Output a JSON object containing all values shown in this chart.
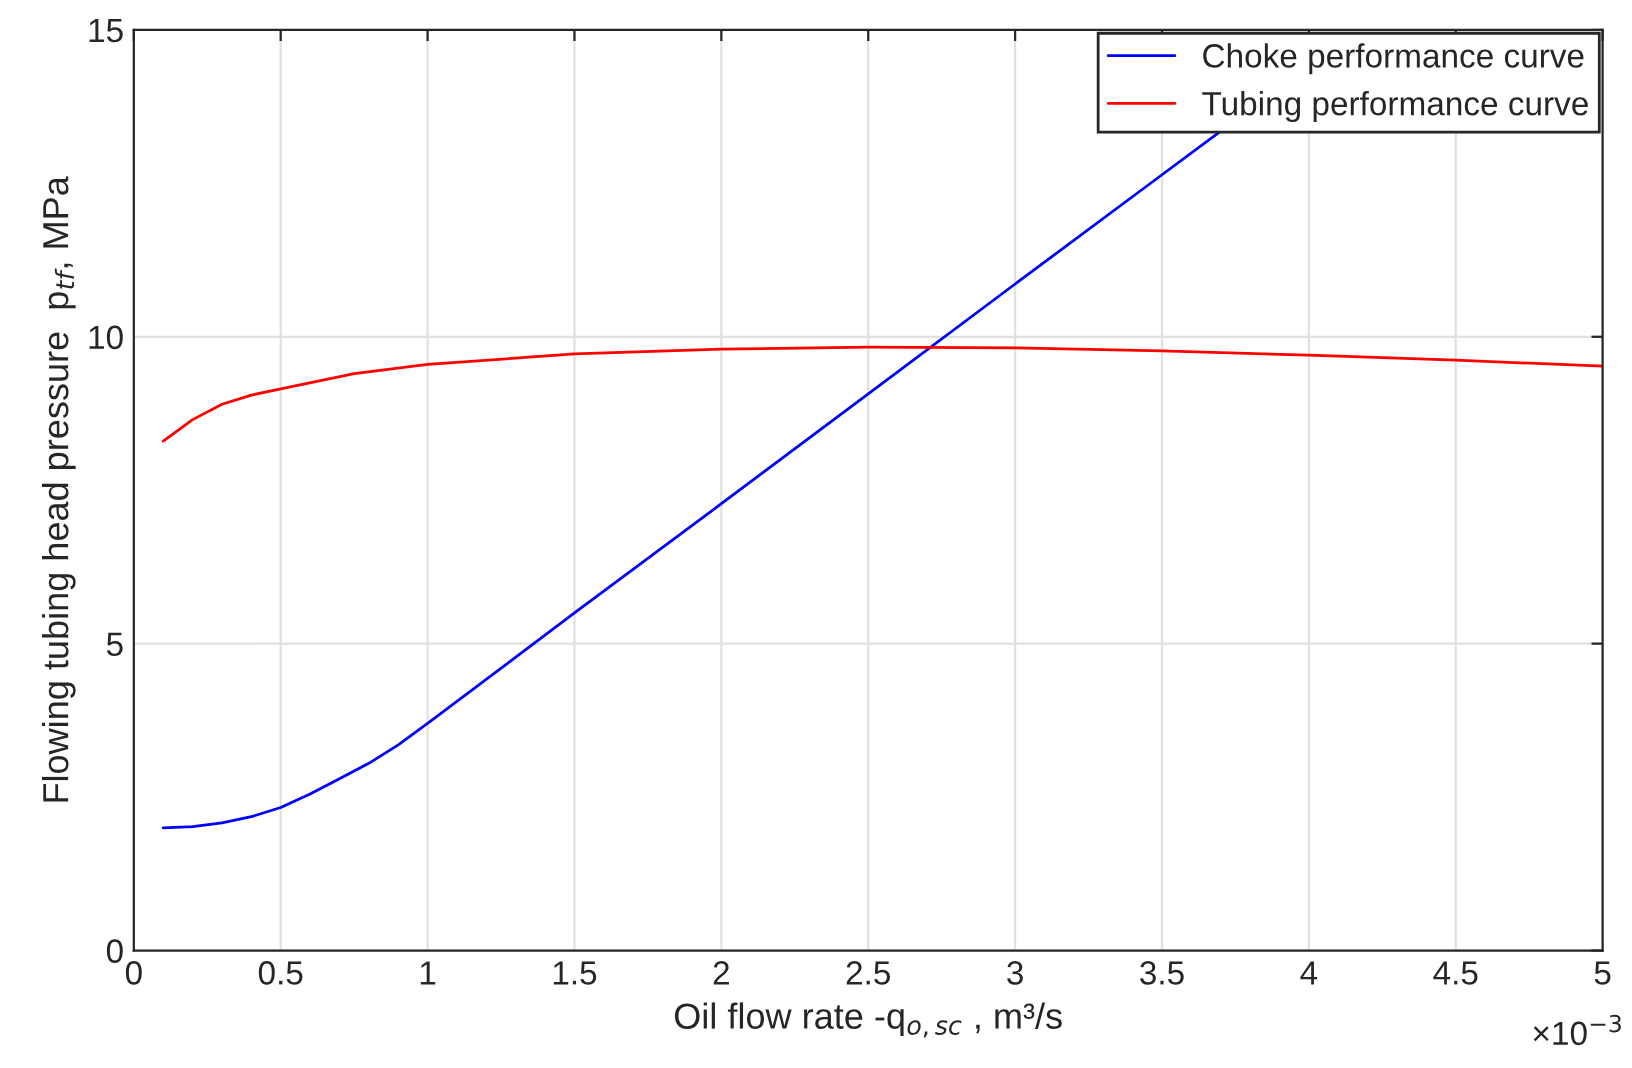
{
  "chart_data": {
    "type": "line",
    "xlabel": "Oil flow rate -q$_{o,sc}$ , m³/s",
    "ylabel": "Flowing tubing head pressure  p$_{tf}$, MPa",
    "annotations": [
      "×10$^{−3}$"
    ],
    "xlim": [
      0,
      5
    ],
    "xticks": [
      0,
      0.5,
      1,
      1.5,
      2,
      2.5,
      3,
      3.5,
      4,
      4.5,
      5
    ],
    "ylim": [
      0,
      15
    ],
    "yticks": [
      0,
      5,
      10,
      15
    ],
    "grid": true,
    "legend": "top right",
    "series": [
      {
        "name": "Choke performance curve",
        "color": "#0000ff",
        "x": [
          0.1,
          0.2,
          0.3,
          0.4,
          0.5,
          0.6,
          0.7,
          0.8,
          0.9,
          1.0,
          1.5,
          2.0,
          2.5,
          3.0,
          3.5,
          3.7
        ],
        "values": [
          2.0,
          2.02,
          2.08,
          2.18,
          2.33,
          2.55,
          2.8,
          3.05,
          3.35,
          3.7,
          5.5,
          7.28,
          9.07,
          10.86,
          12.64,
          13.35
        ]
      },
      {
        "name": "Tubing performance curve",
        "color": "#ff0000",
        "x": [
          0.1,
          0.2,
          0.3,
          0.4,
          0.5,
          0.75,
          1.0,
          1.5,
          2.0,
          2.5,
          3.0,
          3.5,
          4.0,
          4.5,
          5.0
        ],
        "values": [
          8.3,
          8.65,
          8.9,
          9.05,
          9.15,
          9.4,
          9.55,
          9.72,
          9.8,
          9.83,
          9.82,
          9.77,
          9.7,
          9.62,
          9.52
        ]
      }
    ]
  }
}
